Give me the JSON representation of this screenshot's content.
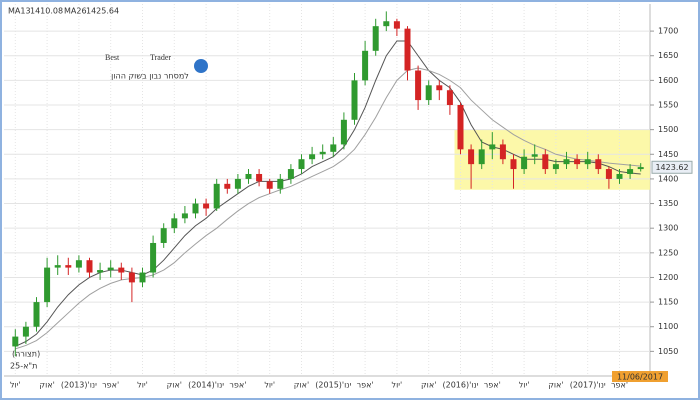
{
  "chart_data": {
    "type": "candlestick",
    "legend": [
      {
        "name": "MA13",
        "current": 1410.08
      },
      {
        "name": "MA26",
        "current": 1425.64
      }
    ],
    "logo": {
      "word1": "Best",
      "word2": "Trader",
      "tagline": "למסחר נבון בשוק ההון"
    },
    "annotations": [
      "(תצורה)",
      "ת\"א-25"
    ],
    "date_label": "11/06/2017",
    "current_price": 1423.62,
    "highlight_range": [
      1378,
      1500
    ],
    "categories": [
      "יול'",
      null,
      null,
      "אוק'",
      null,
      null,
      "ינו'(2013)",
      null,
      null,
      "אפר'",
      null,
      null,
      "יול'",
      null,
      null,
      "אוק'",
      null,
      null,
      "ינו'(2014)",
      null,
      null,
      "אפר'",
      null,
      null,
      "יול'",
      null,
      null,
      "אוק'",
      null,
      null,
      "ינו'(2015)",
      null,
      null,
      "אפר'",
      null,
      null,
      "יול'",
      null,
      null,
      "אוק'",
      null,
      null,
      "ינו'(2016)",
      null,
      null,
      "אפר'",
      null,
      null,
      "יול'",
      null,
      null,
      "אוק'",
      null,
      null,
      "ינו'(2017)",
      null,
      null,
      "אפר'",
      null,
      null
    ],
    "open": [
      1060,
      1080,
      1100,
      1150,
      1220,
      1225,
      1220,
      1235,
      1210,
      1215,
      1220,
      1210,
      1190,
      1210,
      1270,
      1300,
      1320,
      1330,
      1350,
      1340,
      1390,
      1380,
      1400,
      1410,
      1395,
      1380,
      1400,
      1420,
      1440,
      1450,
      1455,
      1470,
      1520,
      1600,
      1660,
      1710,
      1720,
      1705,
      1620,
      1560,
      1590,
      1580,
      1550,
      1460,
      1430,
      1460,
      1470,
      1440,
      1420,
      1445,
      1450,
      1420,
      1430,
      1440,
      1430,
      1440,
      1420,
      1400,
      1410,
      1420
    ],
    "high": [
      1095,
      1110,
      1160,
      1240,
      1245,
      1240,
      1245,
      1240,
      1230,
      1235,
      1230,
      1220,
      1220,
      1285,
      1310,
      1330,
      1345,
      1360,
      1360,
      1400,
      1400,
      1410,
      1420,
      1420,
      1400,
      1410,
      1430,
      1450,
      1465,
      1470,
      1485,
      1535,
      1615,
      1680,
      1725,
      1740,
      1725,
      1710,
      1630,
      1600,
      1600,
      1590,
      1555,
      1470,
      1480,
      1495,
      1480,
      1450,
      1460,
      1470,
      1460,
      1440,
      1455,
      1450,
      1455,
      1450,
      1425,
      1420,
      1430,
      1432
    ],
    "low": [
      1040,
      1065,
      1090,
      1140,
      1205,
      1205,
      1210,
      1200,
      1195,
      1200,
      1195,
      1150,
      1180,
      1200,
      1260,
      1290,
      1310,
      1320,
      1325,
      1335,
      1370,
      1370,
      1390,
      1385,
      1370,
      1370,
      1390,
      1410,
      1430,
      1440,
      1445,
      1460,
      1510,
      1590,
      1650,
      1700,
      1690,
      1600,
      1540,
      1550,
      1560,
      1530,
      1450,
      1380,
      1420,
      1440,
      1430,
      1380,
      1410,
      1430,
      1410,
      1410,
      1420,
      1420,
      1420,
      1410,
      1380,
      1390,
      1400,
      1415
    ],
    "close": [
      1080,
      1100,
      1150,
      1220,
      1225,
      1220,
      1235,
      1210,
      1215,
      1220,
      1210,
      1190,
      1210,
      1270,
      1300,
      1320,
      1330,
      1350,
      1340,
      1390,
      1380,
      1400,
      1410,
      1395,
      1380,
      1400,
      1420,
      1440,
      1450,
      1455,
      1470,
      1520,
      1600,
      1660,
      1710,
      1720,
      1705,
      1620,
      1560,
      1590,
      1580,
      1550,
      1460,
      1430,
      1460,
      1470,
      1440,
      1420,
      1445,
      1450,
      1420,
      1430,
      1440,
      1430,
      1440,
      1420,
      1400,
      1410,
      1420,
      1424
    ],
    "up_color": "#2f9a2f",
    "down_color": "#d42424",
    "series": [
      {
        "name": "MA13",
        "color": "#555555",
        "values": [
          1060,
          1070,
          1085,
          1110,
          1140,
          1165,
          1185,
          1200,
          1210,
          1215,
          1215,
          1210,
          1205,
          1215,
          1235,
          1260,
          1285,
          1305,
          1320,
          1340,
          1355,
          1370,
          1385,
          1395,
          1395,
          1395,
          1400,
          1410,
          1425,
          1435,
          1445,
          1465,
          1500,
          1545,
          1600,
          1650,
          1680,
          1680,
          1650,
          1620,
          1600,
          1585,
          1555,
          1510,
          1475,
          1465,
          1460,
          1450,
          1440,
          1440,
          1440,
          1435,
          1435,
          1435,
          1435,
          1432,
          1425,
          1415,
          1412,
          1410
        ]
      },
      {
        "name": "MA26",
        "color": "#a0a0a0",
        "values": [
          1055,
          1062,
          1072,
          1088,
          1108,
          1128,
          1148,
          1165,
          1178,
          1188,
          1195,
          1198,
          1200,
          1205,
          1215,
          1230,
          1250,
          1268,
          1285,
          1300,
          1318,
          1335,
          1350,
          1362,
          1370,
          1378,
          1385,
          1395,
          1405,
          1415,
          1425,
          1440,
          1460,
          1490,
          1525,
          1565,
          1600,
          1620,
          1625,
          1620,
          1612,
          1600,
          1585,
          1560,
          1540,
          1520,
          1505,
          1490,
          1478,
          1468,
          1460,
          1450,
          1445,
          1440,
          1438,
          1435,
          1432,
          1430,
          1428,
          1426
        ]
      }
    ],
    "ylim": [
      1000,
      1755
    ],
    "yticks": [
      1050,
      1100,
      1150,
      1200,
      1250,
      1300,
      1350,
      1400,
      1450,
      1500,
      1550,
      1600,
      1650,
      1700
    ],
    "grid": true
  }
}
